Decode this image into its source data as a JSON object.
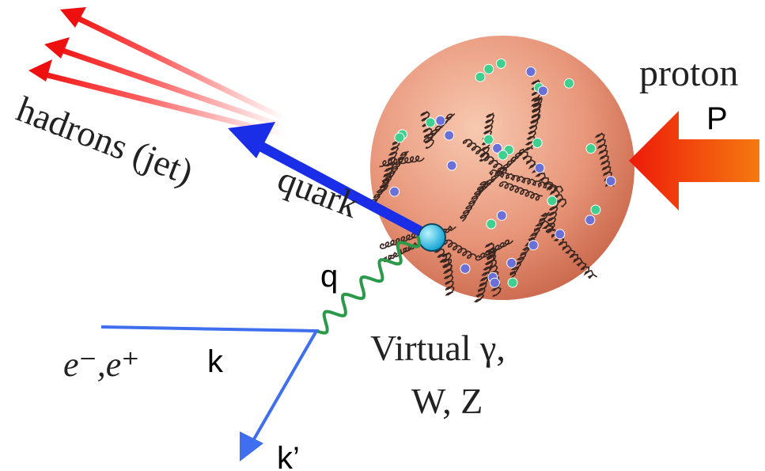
{
  "labels": {
    "jet": "hadrons (jet)",
    "quark": "quark",
    "proton": "proton",
    "proton_symbol": "P",
    "photon_momentum": "q",
    "lepton": "e⁻,e⁺",
    "incoming_momentum": "k",
    "outgoing_momentum": "k’",
    "boson_line1": "Virtual γ,",
    "boson_line2": "W, Z"
  }
}
